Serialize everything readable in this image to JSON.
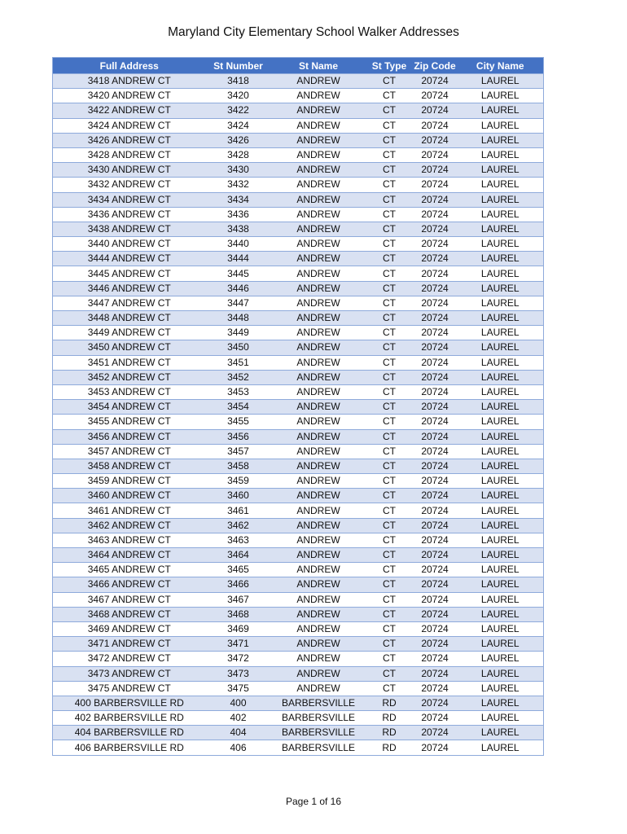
{
  "title": "Maryland City Elementary School Walker Addresses",
  "table": {
    "columns": [
      "Full Address",
      "St Number",
      "St Name",
      "St Type",
      "Zip Code",
      "City Name"
    ],
    "rows": [
      [
        "3418 ANDREW CT",
        "3418",
        "ANDREW",
        "CT",
        "20724",
        "LAUREL"
      ],
      [
        "3420 ANDREW CT",
        "3420",
        "ANDREW",
        "CT",
        "20724",
        "LAUREL"
      ],
      [
        "3422 ANDREW CT",
        "3422",
        "ANDREW",
        "CT",
        "20724",
        "LAUREL"
      ],
      [
        "3424 ANDREW CT",
        "3424",
        "ANDREW",
        "CT",
        "20724",
        "LAUREL"
      ],
      [
        "3426 ANDREW CT",
        "3426",
        "ANDREW",
        "CT",
        "20724",
        "LAUREL"
      ],
      [
        "3428 ANDREW CT",
        "3428",
        "ANDREW",
        "CT",
        "20724",
        "LAUREL"
      ],
      [
        "3430 ANDREW CT",
        "3430",
        "ANDREW",
        "CT",
        "20724",
        "LAUREL"
      ],
      [
        "3432 ANDREW CT",
        "3432",
        "ANDREW",
        "CT",
        "20724",
        "LAUREL"
      ],
      [
        "3434 ANDREW CT",
        "3434",
        "ANDREW",
        "CT",
        "20724",
        "LAUREL"
      ],
      [
        "3436 ANDREW CT",
        "3436",
        "ANDREW",
        "CT",
        "20724",
        "LAUREL"
      ],
      [
        "3438 ANDREW CT",
        "3438",
        "ANDREW",
        "CT",
        "20724",
        "LAUREL"
      ],
      [
        "3440 ANDREW CT",
        "3440",
        "ANDREW",
        "CT",
        "20724",
        "LAUREL"
      ],
      [
        "3444 ANDREW CT",
        "3444",
        "ANDREW",
        "CT",
        "20724",
        "LAUREL"
      ],
      [
        "3445 ANDREW CT",
        "3445",
        "ANDREW",
        "CT",
        "20724",
        "LAUREL"
      ],
      [
        "3446 ANDREW CT",
        "3446",
        "ANDREW",
        "CT",
        "20724",
        "LAUREL"
      ],
      [
        "3447 ANDREW CT",
        "3447",
        "ANDREW",
        "CT",
        "20724",
        "LAUREL"
      ],
      [
        "3448 ANDREW CT",
        "3448",
        "ANDREW",
        "CT",
        "20724",
        "LAUREL"
      ],
      [
        "3449 ANDREW CT",
        "3449",
        "ANDREW",
        "CT",
        "20724",
        "LAUREL"
      ],
      [
        "3450 ANDREW CT",
        "3450",
        "ANDREW",
        "CT",
        "20724",
        "LAUREL"
      ],
      [
        "3451 ANDREW CT",
        "3451",
        "ANDREW",
        "CT",
        "20724",
        "LAUREL"
      ],
      [
        "3452 ANDREW CT",
        "3452",
        "ANDREW",
        "CT",
        "20724",
        "LAUREL"
      ],
      [
        "3453 ANDREW CT",
        "3453",
        "ANDREW",
        "CT",
        "20724",
        "LAUREL"
      ],
      [
        "3454 ANDREW CT",
        "3454",
        "ANDREW",
        "CT",
        "20724",
        "LAUREL"
      ],
      [
        "3455 ANDREW CT",
        "3455",
        "ANDREW",
        "CT",
        "20724",
        "LAUREL"
      ],
      [
        "3456 ANDREW CT",
        "3456",
        "ANDREW",
        "CT",
        "20724",
        "LAUREL"
      ],
      [
        "3457 ANDREW CT",
        "3457",
        "ANDREW",
        "CT",
        "20724",
        "LAUREL"
      ],
      [
        "3458 ANDREW CT",
        "3458",
        "ANDREW",
        "CT",
        "20724",
        "LAUREL"
      ],
      [
        "3459 ANDREW CT",
        "3459",
        "ANDREW",
        "CT",
        "20724",
        "LAUREL"
      ],
      [
        "3460 ANDREW CT",
        "3460",
        "ANDREW",
        "CT",
        "20724",
        "LAUREL"
      ],
      [
        "3461 ANDREW CT",
        "3461",
        "ANDREW",
        "CT",
        "20724",
        "LAUREL"
      ],
      [
        "3462 ANDREW CT",
        "3462",
        "ANDREW",
        "CT",
        "20724",
        "LAUREL"
      ],
      [
        "3463 ANDREW CT",
        "3463",
        "ANDREW",
        "CT",
        "20724",
        "LAUREL"
      ],
      [
        "3464 ANDREW CT",
        "3464",
        "ANDREW",
        "CT",
        "20724",
        "LAUREL"
      ],
      [
        "3465 ANDREW CT",
        "3465",
        "ANDREW",
        "CT",
        "20724",
        "LAUREL"
      ],
      [
        "3466 ANDREW CT",
        "3466",
        "ANDREW",
        "CT",
        "20724",
        "LAUREL"
      ],
      [
        "3467 ANDREW CT",
        "3467",
        "ANDREW",
        "CT",
        "20724",
        "LAUREL"
      ],
      [
        "3468 ANDREW CT",
        "3468",
        "ANDREW",
        "CT",
        "20724",
        "LAUREL"
      ],
      [
        "3469 ANDREW CT",
        "3469",
        "ANDREW",
        "CT",
        "20724",
        "LAUREL"
      ],
      [
        "3471 ANDREW CT",
        "3471",
        "ANDREW",
        "CT",
        "20724",
        "LAUREL"
      ],
      [
        "3472 ANDREW CT",
        "3472",
        "ANDREW",
        "CT",
        "20724",
        "LAUREL"
      ],
      [
        "3473 ANDREW CT",
        "3473",
        "ANDREW",
        "CT",
        "20724",
        "LAUREL"
      ],
      [
        "3475 ANDREW CT",
        "3475",
        "ANDREW",
        "CT",
        "20724",
        "LAUREL"
      ],
      [
        "400 BARBERSVILLE RD",
        "400",
        "BARBERSVILLE",
        "RD",
        "20724",
        "LAUREL"
      ],
      [
        "402 BARBERSVILLE RD",
        "402",
        "BARBERSVILLE",
        "RD",
        "20724",
        "LAUREL"
      ],
      [
        "404 BARBERSVILLE RD",
        "404",
        "BARBERSVILLE",
        "RD",
        "20724",
        "LAUREL"
      ],
      [
        "406 BARBERSVILLE RD",
        "406",
        "BARBERSVILLE",
        "RD",
        "20724",
        "LAUREL"
      ]
    ]
  },
  "footer": "Page 1 of 16",
  "colors": {
    "header": "#4472c4",
    "band": "#d9e1f2",
    "border": "#8eaadb"
  }
}
